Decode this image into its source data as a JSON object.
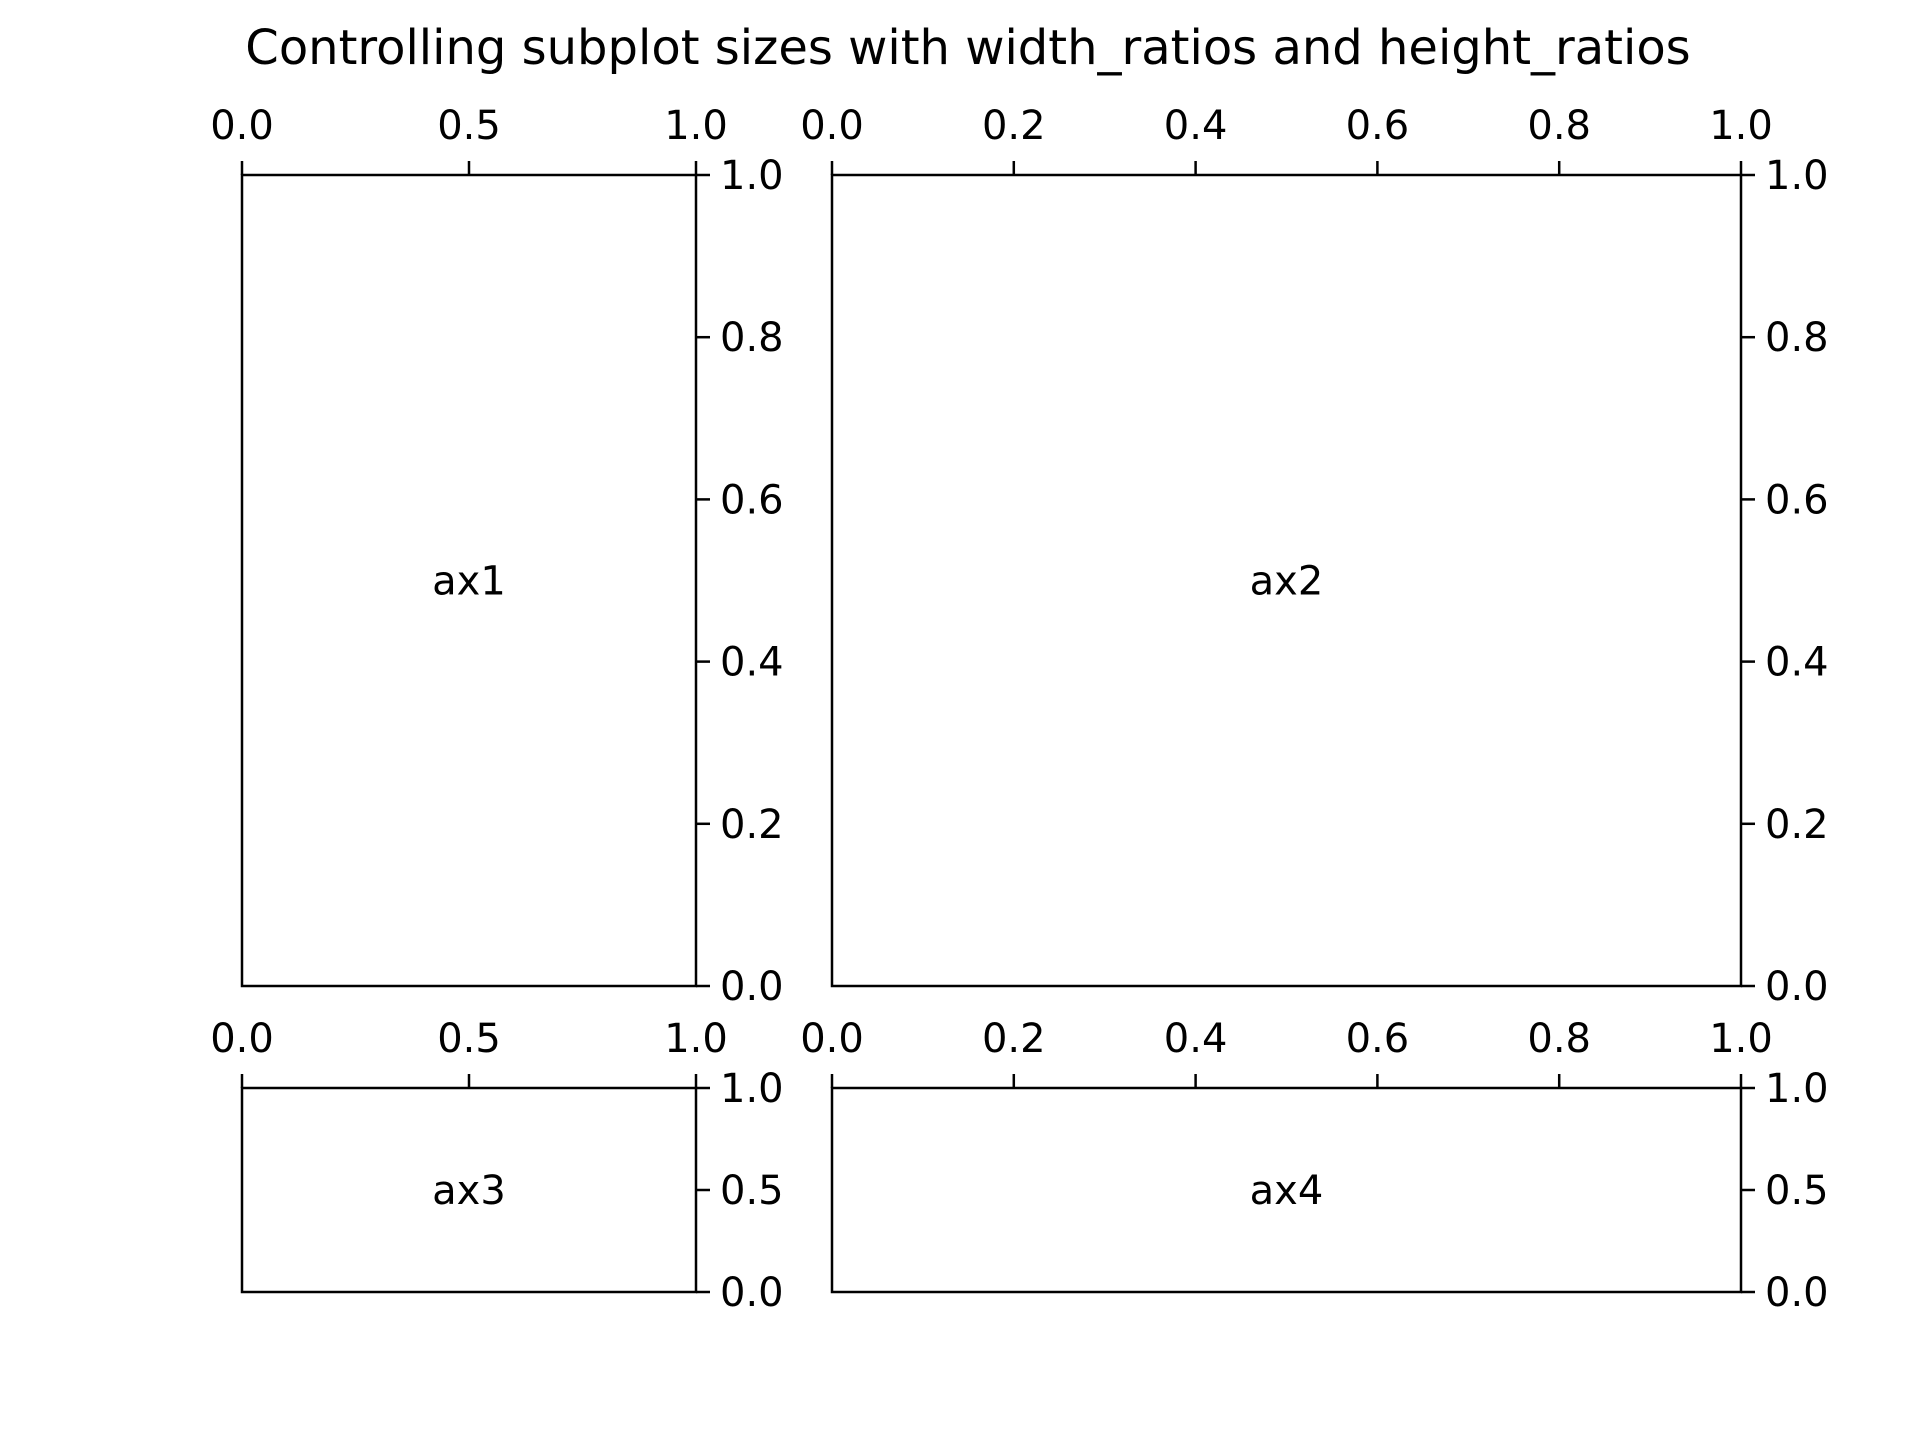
{
  "figure": {
    "title": "Controlling subplot sizes with width_ratios and height_ratios",
    "background": "#ffffff",
    "line_color": "#000000"
  },
  "chart_data": [
    {
      "type": "line",
      "name": "ax1",
      "label": "ax1",
      "xlim": [
        0,
        1
      ],
      "ylim": [
        0,
        1
      ],
      "xticks": [
        0.0,
        0.5,
        1.0
      ],
      "xtick_labels": [
        "0.0",
        "0.5",
        "1.0"
      ],
      "yticks": [
        0.0,
        0.2,
        0.4,
        0.6,
        0.8,
        1.0
      ],
      "ytick_labels": [
        "0.0",
        "0.2",
        "0.4",
        "0.6",
        "0.8",
        "1.0"
      ],
      "xaxis_position": "top",
      "yaxis_position": "right",
      "grid": false,
      "series": []
    },
    {
      "type": "line",
      "name": "ax2",
      "label": "ax2",
      "xlim": [
        0,
        1
      ],
      "ylim": [
        0,
        1
      ],
      "xticks": [
        0.0,
        0.2,
        0.4,
        0.6,
        0.8,
        1.0
      ],
      "xtick_labels": [
        "0.0",
        "0.2",
        "0.4",
        "0.6",
        "0.8",
        "1.0"
      ],
      "yticks": [
        0.0,
        0.2,
        0.4,
        0.6,
        0.8,
        1.0
      ],
      "ytick_labels": [
        "0.0",
        "0.2",
        "0.4",
        "0.6",
        "0.8",
        "1.0"
      ],
      "xaxis_position": "top",
      "yaxis_position": "right",
      "grid": false,
      "series": []
    },
    {
      "type": "line",
      "name": "ax3",
      "label": "ax3",
      "xlim": [
        0,
        1
      ],
      "ylim": [
        0,
        1
      ],
      "xticks": [
        0.0,
        0.5,
        1.0
      ],
      "xtick_labels": [
        "0.0",
        "0.5",
        "1.0"
      ],
      "yticks": [
        0.0,
        0.5,
        1.0
      ],
      "ytick_labels": [
        "0.0",
        "0.5",
        "1.0"
      ],
      "xaxis_position": "top",
      "yaxis_position": "right",
      "grid": false,
      "series": []
    },
    {
      "type": "line",
      "name": "ax4",
      "label": "ax4",
      "xlim": [
        0,
        1
      ],
      "ylim": [
        0,
        1
      ],
      "xticks": [
        0.0,
        0.2,
        0.4,
        0.6,
        0.8,
        1.0
      ],
      "xtick_labels": [
        "0.0",
        "0.2",
        "0.4",
        "0.6",
        "0.8",
        "1.0"
      ],
      "yticks": [
        0.0,
        0.5,
        1.0
      ],
      "ytick_labels": [
        "0.0",
        "0.5",
        "1.0"
      ],
      "xaxis_position": "top",
      "yaxis_position": "right",
      "grid": false,
      "series": []
    }
  ]
}
